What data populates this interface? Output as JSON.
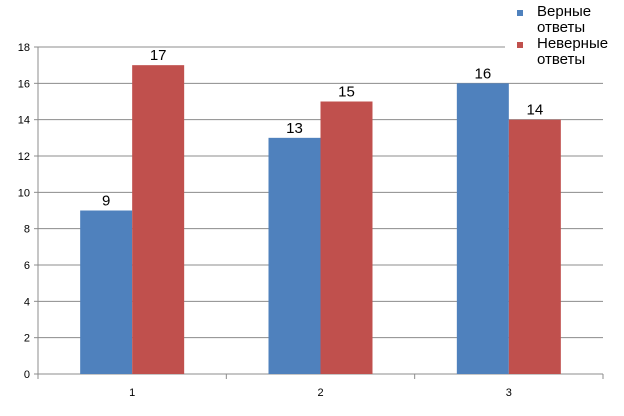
{
  "chart_data": {
    "type": "bar",
    "categories": [
      "1",
      "2",
      "3"
    ],
    "series": [
      {
        "name": "Верные ответы",
        "values": [
          9,
          13,
          16
        ],
        "color": "#4F81BD"
      },
      {
        "name": "Неверные ответы",
        "values": [
          17,
          15,
          14
        ],
        "color": "#C0504D"
      }
    ],
    "ylim": [
      0,
      18
    ],
    "yticks": [
      0,
      2,
      4,
      6,
      8,
      10,
      12,
      14,
      16,
      18
    ],
    "grid": true,
    "legend_position": "top-right",
    "title": "",
    "xlabel": "",
    "ylabel": ""
  },
  "legend": {
    "items": [
      {
        "label": "Верные ответы"
      },
      {
        "label": "Неверные ответы"
      }
    ]
  }
}
